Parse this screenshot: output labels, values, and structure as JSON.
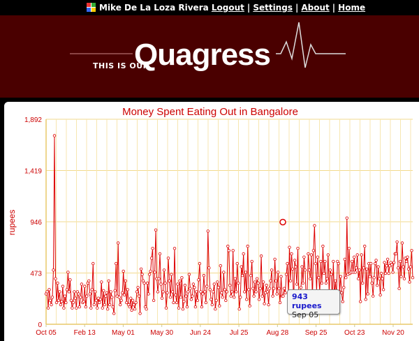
{
  "topbar": {
    "user_name": "Mike De La Loza Rivera",
    "links": [
      "Logout",
      "Settings",
      "About",
      "Home"
    ]
  },
  "banner": {
    "tagline": "This is our",
    "brand": "Quagress"
  },
  "chart_data": {
    "type": "line",
    "title": "Money Spent Eating Out in Bangalore",
    "ylabel": "rupees",
    "xlabel": "",
    "ylim": [
      0,
      1892
    ],
    "yticks": [
      0,
      473,
      946,
      1419,
      1892
    ],
    "ytick_labels": [
      "0",
      "473",
      "946",
      "1,419",
      "1,892"
    ],
    "xtick_labels": [
      "Oct 05",
      "Feb 13",
      "May 01",
      "May 30",
      "Jun 24",
      "Jul 25",
      "Aug 28",
      "Sep 25",
      "Oct 23",
      "Nov 20"
    ],
    "grid": true,
    "color": "#dd0000",
    "values": [
      280,
      300,
      150,
      320,
      220,
      180,
      250,
      500,
      1740,
      420,
      200,
      380,
      220,
      300,
      180,
      210,
      350,
      150,
      260,
      200,
      320,
      480,
      300,
      410,
      220,
      150,
      200,
      300,
      240,
      150,
      300,
      280,
      160,
      250,
      370,
      200,
      210,
      350,
      160,
      260,
      380,
      400,
      280,
      150,
      320,
      560,
      180,
      300,
      220,
      150,
      240,
      200,
      230,
      390,
      150,
      310,
      180,
      260,
      290,
      140,
      400,
      180,
      300,
      250,
      160,
      100,
      310,
      560,
      260,
      750,
      250,
      180,
      220,
      290,
      490,
      270,
      400,
      200,
      320,
      180,
      160,
      240,
      130,
      220,
      180,
      140,
      200,
      300,
      340,
      260,
      100,
      510,
      460,
      400,
      380,
      160,
      140,
      380,
      280,
      460,
      490,
      610,
      700,
      220,
      480,
      870,
      420,
      300,
      420,
      650,
      370,
      240,
      300,
      500,
      380,
      150,
      290,
      610,
      400,
      250,
      460,
      300,
      200,
      700,
      270,
      200,
      370,
      150,
      400,
      250,
      430,
      140,
      210,
      360,
      260,
      160,
      300,
      460,
      330,
      230,
      260,
      370,
      340,
      160,
      300,
      220,
      410,
      560,
      300,
      160,
      280,
      450,
      300,
      200,
      350,
      860,
      520,
      320,
      230,
      180,
      300,
      370,
      140,
      220,
      390,
      340,
      170,
      540,
      290,
      250,
      480,
      320,
      220,
      300,
      720,
      680,
      360,
      260,
      300,
      680,
      250,
      420,
      300,
      560,
      380,
      140,
      250,
      530,
      450,
      650,
      300,
      480,
      230,
      720,
      320,
      170,
      450,
      580,
      330,
      260,
      390,
      300,
      420,
      380,
      230,
      330,
      630,
      260,
      390,
      190,
      290,
      360,
      300,
      180,
      330,
      400,
      500,
      260,
      330,
      600,
      400,
      280,
      480,
      330,
      200,
      440,
      260,
      260,
      330,
      290,
      460,
      560,
      280,
      710,
      400,
      650,
      510,
      200,
      590,
      530,
      370,
      700,
      220,
      290,
      340,
      530,
      380,
      620,
      500,
      230,
      300,
      650,
      500,
      420,
      640,
      220,
      680,
      910,
      560,
      300,
      620,
      430,
      300,
      580,
      380,
      720,
      470,
      580,
      380,
      420,
      640,
      300,
      500,
      460,
      220,
      580,
      260,
      400,
      260,
      580,
      560,
      300,
      440,
      290,
      210,
      340,
      600,
      430,
      980,
      460,
      700,
      470,
      480,
      580,
      480,
      620,
      480,
      520,
      640,
      420,
      500,
      210,
      640,
      380,
      520,
      720,
      230,
      510,
      280,
      560,
      440,
      560,
      380,
      260,
      430,
      560,
      590,
      360,
      530,
      420,
      270,
      470,
      420,
      320,
      570,
      470,
      540,
      600,
      470,
      540,
      570,
      550,
      480,
      570,
      650,
      650,
      760,
      520,
      330,
      580,
      440,
      750,
      530,
      420,
      610,
      580,
      620,
      510,
      390,
      530,
      680,
      430
    ],
    "tooltip": {
      "value_label": "943 rupees",
      "date_label": "Sep 05",
      "value": 943
    }
  }
}
